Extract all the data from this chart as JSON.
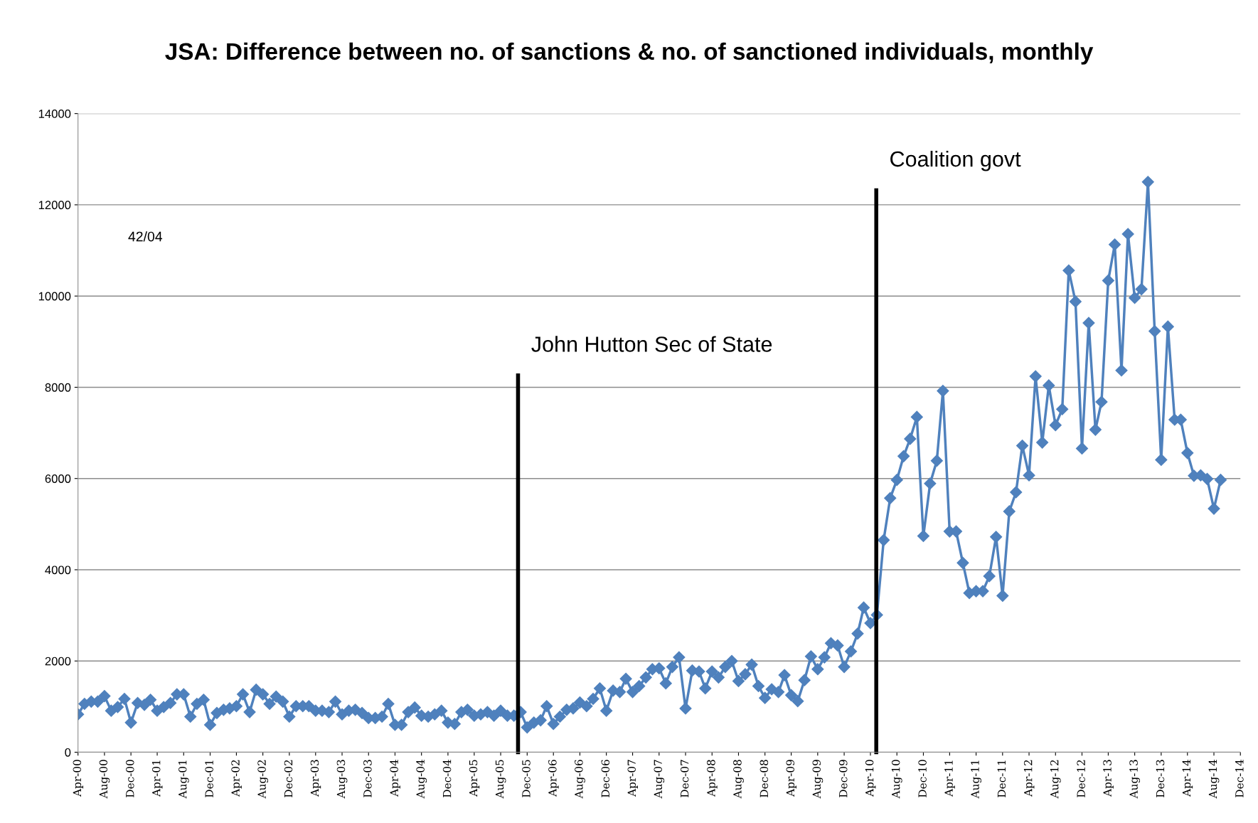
{
  "chart_data": {
    "type": "line",
    "title": "JSA: Difference between no. of sanctions & no. of sanctioned individuals, monthly",
    "annotations": [
      "42/04"
    ],
    "x": [
      "2000-04",
      "2000-05",
      "2000-06",
      "2000-07",
      "2000-08",
      "2000-09",
      "2000-10",
      "2000-11",
      "2000-12",
      "2001-01",
      "2001-02",
      "2001-03",
      "2001-04",
      "2001-05",
      "2001-06",
      "2001-07",
      "2001-08",
      "2001-09",
      "2001-10",
      "2001-11",
      "2001-12",
      "2002-01",
      "2002-02",
      "2002-03",
      "2002-04",
      "2002-05",
      "2002-06",
      "2002-07",
      "2002-08",
      "2002-09",
      "2002-10",
      "2002-11",
      "2002-12",
      "2003-01",
      "2003-02",
      "2003-03",
      "2003-04",
      "2003-05",
      "2003-06",
      "2003-07",
      "2003-08",
      "2003-09",
      "2003-10",
      "2003-11",
      "2003-12",
      "2004-01",
      "2004-02",
      "2004-03",
      "2004-04",
      "2004-05",
      "2004-06",
      "2004-07",
      "2004-08",
      "2004-09",
      "2004-10",
      "2004-11",
      "2004-12",
      "2005-01",
      "2005-02",
      "2005-03",
      "2005-04",
      "2005-05",
      "2005-06",
      "2005-07",
      "2005-08",
      "2005-09",
      "2005-10",
      "2005-11",
      "2005-12",
      "2006-01",
      "2006-02",
      "2006-03",
      "2006-04",
      "2006-05",
      "2006-06",
      "2006-07",
      "2006-08",
      "2006-09",
      "2006-10",
      "2006-11",
      "2006-12",
      "2007-01",
      "2007-02",
      "2007-03",
      "2007-04",
      "2007-05",
      "2007-06",
      "2007-07",
      "2007-08",
      "2007-09",
      "2007-10",
      "2007-11",
      "2007-12",
      "2008-01",
      "2008-02",
      "2008-03",
      "2008-04",
      "2008-05",
      "2008-06",
      "2008-07",
      "2008-08",
      "2008-09",
      "2008-10",
      "2008-11",
      "2008-12",
      "2009-01",
      "2009-02",
      "2009-03",
      "2009-04",
      "2009-05",
      "2009-06",
      "2009-07",
      "2009-08",
      "2009-09",
      "2009-10",
      "2009-11",
      "2009-12",
      "2010-01",
      "2010-02",
      "2010-03",
      "2010-04",
      "2010-05",
      "2010-06",
      "2010-07",
      "2010-08",
      "2010-09",
      "2010-10",
      "2010-11",
      "2010-12",
      "2011-01",
      "2011-02",
      "2011-03",
      "2011-04",
      "2011-05",
      "2011-06",
      "2011-07",
      "2011-08",
      "2011-09",
      "2011-10",
      "2011-11",
      "2011-12",
      "2012-01",
      "2012-02",
      "2012-03",
      "2012-04",
      "2012-05",
      "2012-06",
      "2012-07",
      "2012-08",
      "2012-09",
      "2012-10",
      "2012-11",
      "2012-12",
      "2013-01",
      "2013-02",
      "2013-03",
      "2013-04",
      "2013-05",
      "2013-06",
      "2013-07",
      "2013-08",
      "2013-09",
      "2013-10",
      "2013-11",
      "2013-12",
      "2014-01",
      "2014-02",
      "2014-03",
      "2014-04",
      "2014-05",
      "2014-06",
      "2014-07",
      "2014-08",
      "2014-09"
    ],
    "series": [
      {
        "color": "#4f81bd",
        "values": [
          830,
          1060,
          1110,
          1110,
          1230,
          910,
          990,
          1170,
          650,
          1080,
          1040,
          1150,
          910,
          990,
          1080,
          1270,
          1270,
          780,
          1060,
          1150,
          600,
          860,
          930,
          960,
          1010,
          1270,
          880,
          1370,
          1270,
          1060,
          1220,
          1110,
          780,
          1010,
          1010,
          1010,
          910,
          910,
          880,
          1110,
          830,
          910,
          930,
          860,
          750,
          750,
          780,
          1060,
          600,
          600,
          880,
          980,
          800,
          780,
          830,
          910,
          650,
          620,
          880,
          930,
          800,
          830,
          880,
          800,
          910,
          800,
          800,
          880,
          545,
          650,
          700,
          1010,
          620,
          780,
          930,
          960,
          1090,
          1010,
          1170,
          1400,
          910,
          1350,
          1320,
          1610,
          1320,
          1450,
          1640,
          1820,
          1840,
          1510,
          1870,
          2080,
          960,
          1790,
          1770,
          1400,
          1770,
          1640,
          1870,
          2000,
          1560,
          1710,
          1920,
          1450,
          1190,
          1380,
          1320,
          1690,
          1250,
          1120,
          1580,
          2100,
          1820,
          2080,
          2390,
          2340,
          1870,
          2210,
          2600,
          3170,
          2830,
          3010,
          4650,
          5570,
          5970,
          6490,
          6870,
          7350,
          4740,
          5890,
          6390,
          7920,
          4840,
          4840,
          4150,
          3490,
          3530,
          3530,
          3860,
          4720,
          3430,
          5280,
          5700,
          6720,
          6070,
          8240,
          6790,
          8040,
          7170,
          7520,
          10560,
          9880,
          6660,
          9410,
          7070,
          7680,
          10340,
          11130,
          8370,
          11360,
          9960,
          10150,
          12500,
          9230,
          6410,
          9330,
          7290,
          7290,
          6560,
          6060,
          6070,
          5990,
          5340,
          5970
        ]
      }
    ],
    "marker": "diamond",
    "line_style": "solid",
    "grid": "y",
    "ylim": [
      0,
      14000
    ],
    "yticks": [
      0,
      2000,
      4000,
      6000,
      8000,
      10000,
      12000,
      14000
    ],
    "xlim": [
      "2000-04",
      "2014-12"
    ],
    "xticks": [
      {
        "value": "2000-04",
        "label": "Apr-00"
      },
      {
        "value": "2000-08",
        "label": "Aug-00"
      },
      {
        "value": "2000-12",
        "label": "Dec-00"
      },
      {
        "value": "2001-04",
        "label": "Apr-01"
      },
      {
        "value": "2001-08",
        "label": "Aug-01"
      },
      {
        "value": "2001-12",
        "label": "Dec-01"
      },
      {
        "value": "2002-04",
        "label": "Apr-02"
      },
      {
        "value": "2002-08",
        "label": "Aug-02"
      },
      {
        "value": "2002-12",
        "label": "Dec-02"
      },
      {
        "value": "2003-04",
        "label": "Apr-03"
      },
      {
        "value": "2003-08",
        "label": "Aug-03"
      },
      {
        "value": "2003-12",
        "label": "Dec-03"
      },
      {
        "value": "2004-04",
        "label": "Apr-04"
      },
      {
        "value": "2004-08",
        "label": "Aug-04"
      },
      {
        "value": "2004-12",
        "label": "Dec-04"
      },
      {
        "value": "2005-04",
        "label": "Apr-05"
      },
      {
        "value": "2005-08",
        "label": "Aug-05"
      },
      {
        "value": "2005-12",
        "label": "Dec-05"
      },
      {
        "value": "2006-04",
        "label": "Apr-06"
      },
      {
        "value": "2006-08",
        "label": "Aug-06"
      },
      {
        "value": "2006-12",
        "label": "Dec-06"
      },
      {
        "value": "2007-04",
        "label": "Apr-07"
      },
      {
        "value": "2007-08",
        "label": "Aug-07"
      },
      {
        "value": "2007-12",
        "label": "Dec-07"
      },
      {
        "value": "2008-04",
        "label": "Apr-08"
      },
      {
        "value": "2008-08",
        "label": "Aug-08"
      },
      {
        "value": "2008-12",
        "label": "Dec-08"
      },
      {
        "value": "2009-04",
        "label": "Apr-09"
      },
      {
        "value": "2009-08",
        "label": "Aug-09"
      },
      {
        "value": "2009-12",
        "label": "Dec-09"
      },
      {
        "value": "2010-04",
        "label": "Apr-10"
      },
      {
        "value": "2010-08",
        "label": "Aug-10"
      },
      {
        "value": "2010-12",
        "label": "Dec-10"
      },
      {
        "value": "2011-04",
        "label": "Apr-11"
      },
      {
        "value": "2011-08",
        "label": "Aug-11"
      },
      {
        "value": "2011-12",
        "label": "Dec-11"
      },
      {
        "value": "2012-04",
        "label": "Apr-12"
      },
      {
        "value": "2012-08",
        "label": "Aug-12"
      },
      {
        "value": "2012-12",
        "label": "Dec-12"
      },
      {
        "value": "2013-04",
        "label": "Apr-13"
      },
      {
        "value": "2013-08",
        "label": "Aug-13"
      },
      {
        "value": "2013-12",
        "label": "Dec-13"
      },
      {
        "value": "2014-04",
        "label": "Apr-14"
      },
      {
        "value": "2014-08",
        "label": "Aug-14"
      },
      {
        "value": "2014-12",
        "label": "Dec-14"
      }
    ],
    "ref_lines": [
      {
        "axis": "x",
        "value": "2005-10-20",
        "label": "John Hutton Sec of State",
        "color": "#000000"
      },
      {
        "axis": "x",
        "value": "2010-04-28",
        "label": "Coalition govt",
        "color": "#000000"
      }
    ]
  }
}
